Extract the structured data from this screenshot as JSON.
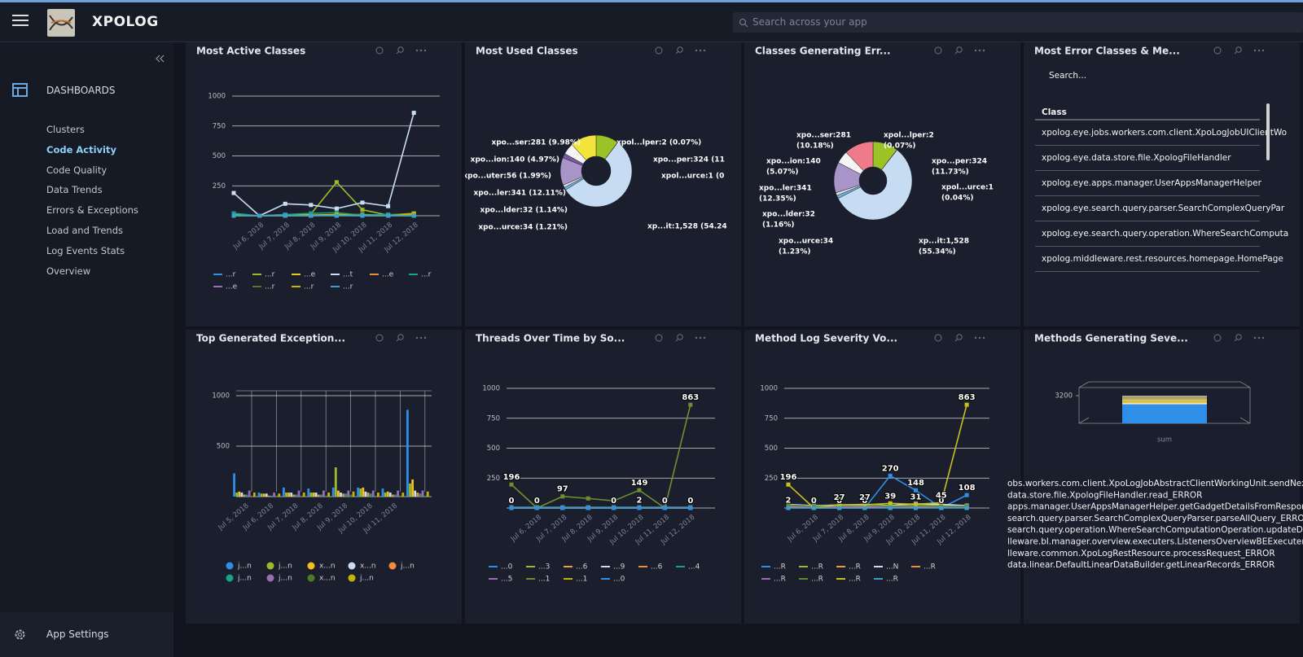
{
  "header": {
    "brand": "XPOLOG",
    "search_placeholder": "Search across your app"
  },
  "sidebar": {
    "section": "DASHBOARDS",
    "items": [
      "Clusters",
      "Code Activity",
      "Code Quality",
      "Data Trends",
      "Errors & Exceptions",
      "Load and Trends",
      "Log Events Stats",
      "Overview"
    ],
    "active_index": 1,
    "settings": "App Settings"
  },
  "widgets": [
    {
      "title": "Most Active Classes",
      "type": "line",
      "categories": [
        null,
        "Jul 6, 2018",
        "Jul 7, 2018",
        "Jul 8, 2018",
        "Jul 9, 2018",
        "Jul 10, 2018",
        "Jul 11, 2018",
        "Jul 12, 2018"
      ],
      "ylim": [
        0,
        1000
      ],
      "yticks": [
        250,
        500,
        750,
        1000
      ],
      "series": [
        {
          "name": "...r",
          "color": "#2f8fe8",
          "values": [
            10,
            0,
            5,
            5,
            10,
            5,
            10,
            10
          ]
        },
        {
          "name": "...r",
          "color": "#9bbb2b",
          "values": [
            5,
            0,
            10,
            15,
            280,
            50,
            5,
            20
          ]
        },
        {
          "name": "...e",
          "color": "#e8c620",
          "values": [
            5,
            0,
            5,
            5,
            10,
            10,
            5,
            10
          ]
        },
        {
          "name": "...t",
          "color": "#c8def5",
          "values": [
            190,
            0,
            100,
            90,
            60,
            110,
            80,
            860
          ]
        },
        {
          "name": "...e",
          "color": "#f08c3c",
          "values": [
            0,
            0,
            0,
            0,
            5,
            0,
            0,
            0
          ]
        },
        {
          "name": "...r",
          "color": "#17a08c",
          "values": [
            20,
            0,
            10,
            20,
            25,
            5,
            10,
            5
          ]
        },
        {
          "name": "...e",
          "color": "#9b6bb5",
          "values": [
            0,
            0,
            0,
            0,
            5,
            0,
            0,
            0
          ]
        },
        {
          "name": "...r",
          "color": "#4c7a2a",
          "values": [
            0,
            0,
            0,
            0,
            0,
            0,
            0,
            0
          ]
        },
        {
          "name": "...r",
          "color": "#c8b400",
          "values": [
            0,
            0,
            0,
            0,
            10,
            0,
            0,
            15
          ]
        },
        {
          "name": "...r",
          "color": "#39a0d0",
          "values": [
            0,
            0,
            0,
            0,
            0,
            0,
            0,
            0
          ]
        }
      ]
    },
    {
      "title": "Most Used Classes",
      "type": "donut",
      "values": [
        281,
        2,
        1,
        1528,
        34,
        32,
        341,
        56,
        140,
        324
      ],
      "value_labels": [
        "xpo...ser:281 (9.98%)",
        "xpol...lper:2 (0.07%)",
        "xpol...urce:1 (0",
        "xp...it:1,528 (54.24",
        "xpo...urce:34 (1.21%)",
        "xpo...lder:32 (1.14%)",
        "xpo...ler:341 (12.11%)",
        "xpo...uter:56 (1.99%)",
        "xpo...ion:140 (4.97%)",
        "xpo...per:324 (11"
      ],
      "colors": [
        "#9bc326",
        "#e84d4d",
        "#f0a050",
        "#c6dcf2",
        "#6fb0e0",
        "#e0e0e0",
        "#a894c8",
        "#7a5aa0",
        "#f5f5f5",
        "#f2e43a"
      ]
    },
    {
      "title": "Classes Generating Err...",
      "type": "donut",
      "values": [
        281,
        2,
        1,
        1528,
        34,
        32,
        341,
        140,
        324
      ],
      "value_labels": [
        "xpo...ser:281",
        "xpol...lper:2",
        "xpol...urce:1",
        "xp...it:1,528",
        "xpo...urce:34",
        "xpo...lder:32",
        "xpo...ler:341",
        "xpo...ion:140",
        "xpo...per:324"
      ],
      "percent_labels": [
        "(10.18%)",
        "(0.07%)",
        "(0.04%)",
        "(55.34%)",
        "(1.23%)",
        "(1.16%)",
        "(12.35%)",
        "(5.07%)",
        "(11.73%)"
      ],
      "colors": [
        "#9bc326",
        "#e84d4d",
        "#f0a050",
        "#c6dcf2",
        "#6fb0e0",
        "#e0e0e0",
        "#a894c8",
        "#f5f5f5",
        "#ef7a8a"
      ]
    },
    {
      "title": "Most Error Classes & Me...",
      "type": "table",
      "search_placeholder": "Search...",
      "columns": [
        "Class"
      ],
      "rows": [
        "xpolog.eye.jobs.workers.com.client.XpoLogJobUIClientWo",
        "xpolog.eye.data.store.file.XpologFileHandler",
        "xpolog.eye.apps.manager.UserAppsManagerHelper",
        "xpolog.eye.search.query.parser.SearchComplexQueryPar",
        "xpolog.eye.search.query.operation.WhereSearchComputa",
        "xpolog.middleware.rest.resources.homepage.HomePage"
      ]
    },
    {
      "title": "Top Generated Exception...",
      "type": "bar",
      "categories": [
        "Jul 5, 2018",
        "Jul 6, 2018",
        "Jul 7, 2018",
        "Jul 8, 2018",
        "Jul 9, 2018",
        "Jul 10, 2018",
        "Jul 11, 2018",
        null
      ],
      "ylim": [
        0,
        1000
      ],
      "yticks": [
        500,
        1000
      ],
      "series": [
        {
          "name": "j...n",
          "color": "#2f8fe8",
          "values": [
            230,
            40,
            90,
            80,
            90,
            90,
            80,
            860
          ]
        },
        {
          "name": "j...n",
          "color": "#9bbb2b",
          "values": [
            40,
            30,
            40,
            40,
            290,
            80,
            40,
            130
          ]
        },
        {
          "name": "x...n",
          "color": "#f0c020",
          "values": [
            50,
            30,
            40,
            40,
            60,
            90,
            50,
            170
          ]
        },
        {
          "name": "x...n",
          "color": "#c8def5",
          "values": [
            40,
            30,
            40,
            40,
            40,
            50,
            40,
            60
          ]
        },
        {
          "name": "j...n",
          "color": "#f08c3c",
          "values": [
            20,
            10,
            20,
            20,
            30,
            40,
            20,
            40
          ]
        },
        {
          "name": "j...n",
          "color": "#17a08c",
          "values": [
            20,
            10,
            20,
            20,
            30,
            30,
            20,
            30
          ]
        },
        {
          "name": "j...n",
          "color": "#9b6bb5",
          "values": [
            60,
            40,
            60,
            60,
            60,
            60,
            60,
            60
          ]
        },
        {
          "name": "x...n",
          "color": "#4c7a2a",
          "values": [
            10,
            10,
            10,
            10,
            20,
            10,
            10,
            10
          ]
        },
        {
          "name": "j...n",
          "color": "#c8b400",
          "values": [
            40,
            30,
            40,
            40,
            50,
            40,
            40,
            50
          ]
        }
      ]
    },
    {
      "title": "Threads Over Time by So...",
      "type": "line",
      "categories": [
        null,
        "Jul 6, 2018",
        "Jul 7, 2018",
        "Jul 8, 2018",
        "Jul 9, 2018",
        "Jul 10, 2018",
        "Jul 11, 2018",
        "Jul 12, 2018"
      ],
      "ylim": [
        0,
        1000
      ],
      "yticks": [
        250,
        500,
        750,
        1000
      ],
      "series": [
        {
          "name": "...0",
          "color": "#2f8fe8",
          "values": [
            0,
            0,
            0,
            0,
            0,
            2,
            0,
            0
          ],
          "value_labels": [
            "0",
            null,
            null,
            null,
            "0",
            "2",
            null,
            "0"
          ]
        },
        {
          "name": "...3",
          "color": "#9bbb2b",
          "values": [
            0,
            0,
            0,
            0,
            0,
            0,
            0,
            0
          ]
        },
        {
          "name": "...6",
          "color": "#f0a030",
          "values": [
            0,
            0,
            0,
            0,
            0,
            0,
            0,
            0
          ]
        },
        {
          "name": "...9",
          "color": "#c8def5",
          "values": [
            5,
            5,
            5,
            5,
            5,
            5,
            5,
            5
          ]
        },
        {
          "name": "...6",
          "color": "#f08c3c",
          "values": [
            0,
            0,
            0,
            0,
            0,
            0,
            0,
            0
          ]
        },
        {
          "name": "...4",
          "color": "#17a08c",
          "values": [
            3,
            3,
            3,
            3,
            3,
            3,
            3,
            3
          ]
        },
        {
          "name": "...5",
          "color": "#9b6bb5",
          "values": [
            0,
            0,
            0,
            0,
            0,
            0,
            0,
            0
          ]
        },
        {
          "name": "...1",
          "color": "#6f8f2e",
          "values": [
            196,
            0,
            97,
            80,
            60,
            149,
            0,
            863
          ],
          "value_labels": [
            "196",
            "0",
            "97",
            null,
            null,
            "149",
            "0",
            "863"
          ]
        },
        {
          "name": "...1",
          "color": "#c8b400",
          "values": [
            0,
            0,
            0,
            0,
            0,
            0,
            0,
            0
          ]
        },
        {
          "name": "...0",
          "color": "#2f8fe8",
          "values": [
            0,
            0,
            0,
            0,
            0,
            0,
            0,
            0
          ]
        }
      ]
    },
    {
      "title": "Method Log Severity Vo...",
      "type": "line",
      "categories": [
        null,
        "Jul 6, 2018",
        "Jul 7, 2018",
        "Jul 8, 2018",
        "Jul 9, 2018",
        "Jul 10, 2018",
        "Jul 11, 2018",
        "Jul 12, 2018"
      ],
      "ylim": [
        0,
        1000
      ],
      "yticks": [
        250,
        500,
        750,
        1000
      ],
      "series": [
        {
          "name": "...R",
          "color": "#2f8fe8",
          "values": [
            2,
            0,
            0,
            0,
            270,
            148,
            0,
            108
          ],
          "value_labels": [
            "2",
            "0",
            "0",
            "0",
            "270",
            "148",
            "0",
            "108"
          ]
        },
        {
          "name": "...R",
          "color": "#9bbb2b",
          "values": [
            20,
            10,
            15,
            20,
            10,
            30,
            20,
            15
          ]
        },
        {
          "name": "...R",
          "color": "#f0a030",
          "values": [
            10,
            5,
            5,
            10,
            5,
            10,
            5,
            5
          ]
        },
        {
          "name": "...N",
          "color": "#c8def5",
          "values": [
            30,
            20,
            25,
            30,
            20,
            35,
            30,
            20
          ]
        },
        {
          "name": "...R",
          "color": "#f08c3c",
          "values": [
            5,
            5,
            5,
            5,
            5,
            5,
            5,
            5
          ]
        },
        {
          "name": "...R",
          "color": "#9b6bb5",
          "values": [
            15,
            10,
            10,
            15,
            10,
            15,
            10,
            10
          ]
        },
        {
          "name": "...R",
          "color": "#5e8a2a",
          "values": [
            25,
            15,
            20,
            25,
            15,
            20,
            15,
            15
          ]
        },
        {
          "name": "...R",
          "color": "#c8c020",
          "values": [
            196,
            0,
            27,
            27,
            39,
            31,
            45,
            863
          ],
          "value_labels": [
            "196",
            null,
            "27",
            "27",
            "39",
            "31",
            "45",
            "863"
          ]
        },
        {
          "name": "...R",
          "color": "#39a0d0",
          "values": [
            0,
            0,
            0,
            0,
            0,
            0,
            0,
            0
          ]
        }
      ]
    },
    {
      "title": "Methods Generating Seve...",
      "type": "bar3d",
      "categories": [
        "sum"
      ],
      "ylim": [
        0,
        3400
      ],
      "yticks": [
        3200
      ],
      "series": [
        {
          "color": "#2f8fe8",
          "values": [
            2200
          ]
        },
        {
          "color": "#f0f0f0",
          "values": [
            150
          ]
        },
        {
          "color": "#e8c620",
          "values": [
            250
          ]
        },
        {
          "color": "#d8c890",
          "values": [
            200
          ]
        },
        {
          "color": "#a8b040",
          "values": [
            150
          ]
        },
        {
          "color": "#b0a890",
          "values": [
            250
          ]
        }
      ],
      "lines": [
        "obs.workers.com.client.XpoLogJobAbstractClientWorkingUnit.sendNext",
        "data.store.file.XpologFileHandler.read_ERROR",
        "apps.manager.UserAppsManagerHelper.getGadgetDetailsFromRespons",
        "search.query.parser.SearchComplexQueryParser.parseAllQuery_ERROR",
        "search.query.operation.WhereSearchComputationOperation.updateDat",
        "lleware.bl.manager.overview.executers.ListenersOverviewBEExecuter.e",
        "lleware.common.XpoLogRestResource.processRequest_ERROR",
        "data.linear.DefaultLinearDataBuilder.getLinearRecords_ERROR"
      ]
    }
  ]
}
